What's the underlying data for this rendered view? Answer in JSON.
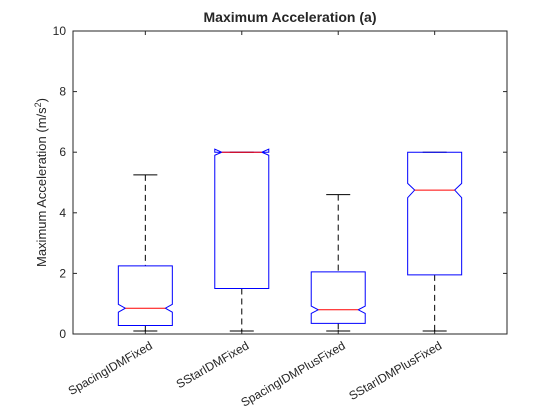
{
  "chart_data": {
    "type": "boxplot",
    "title": "Maximum Acceleration (a)",
    "ylabel": "Maximum Acceleration (m/s^2)",
    "ylabel_text": "Maximum Acceleration (m/s",
    "ylabel_sup": "2",
    "ylabel_close": ")",
    "xlabel": "",
    "ylim": [
      0,
      10
    ],
    "yticks": [
      0,
      2,
      4,
      6,
      8,
      10
    ],
    "categories": [
      "SpacingIDMFixed",
      "SStarIDMFixed",
      "SpacingIDMPlusFixed",
      "SStarIDMPlusFixed"
    ],
    "boxes": [
      {
        "whisker_low": 0.1,
        "q1": 0.28,
        "median": 0.85,
        "q3": 2.25,
        "whisker_high": 5.25,
        "notch_low": 0.72,
        "notch_high": 0.98
      },
      {
        "whisker_low": 0.1,
        "q1": 1.5,
        "median": 6.0,
        "q3": 6.0,
        "whisker_high": 6.0,
        "notch_low": 5.9,
        "notch_high": 6.1
      },
      {
        "whisker_low": 0.1,
        "q1": 0.35,
        "median": 0.8,
        "q3": 2.05,
        "whisker_high": 4.6,
        "notch_low": 0.68,
        "notch_high": 0.92
      },
      {
        "whisker_low": 0.1,
        "q1": 1.95,
        "median": 4.75,
        "q3": 6.0,
        "whisker_high": 6.0,
        "notch_low": 4.5,
        "notch_high": 4.97
      }
    ],
    "box_color": "#0000ff",
    "median_color": "#ff0000",
    "whisker_color": "#000000",
    "grid": false,
    "notched": true
  }
}
